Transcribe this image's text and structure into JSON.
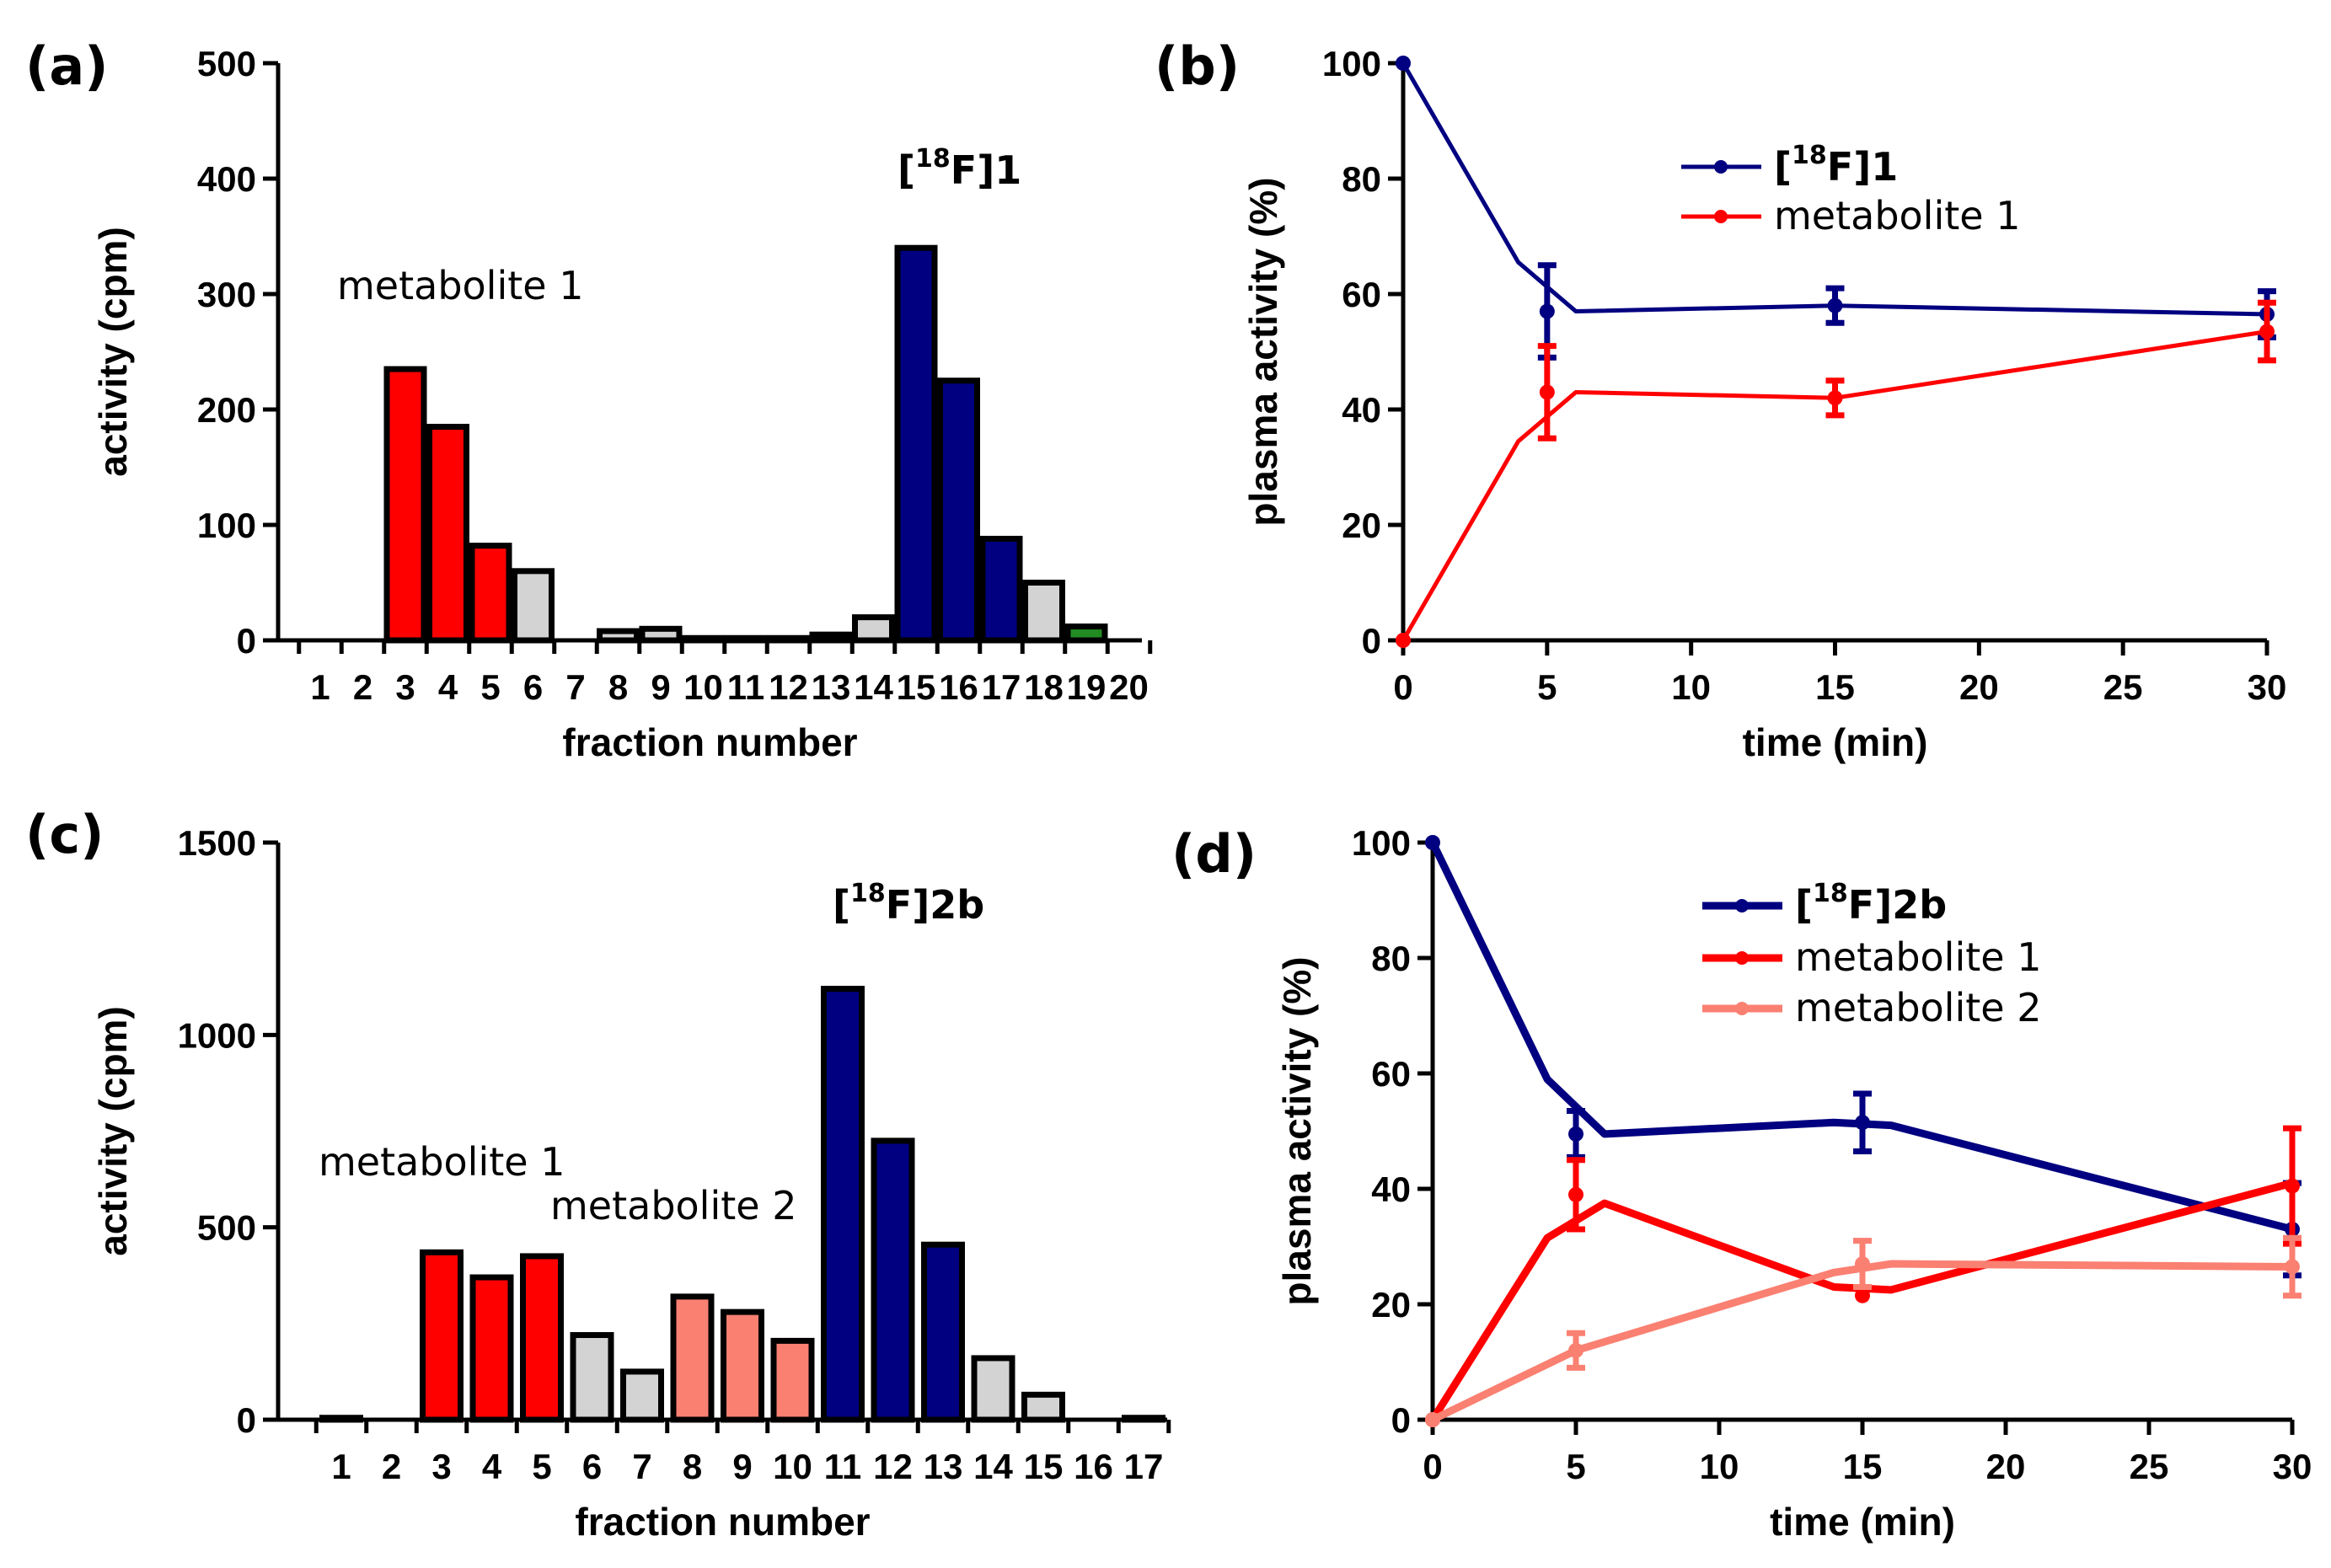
{
  "chart_data": [
    {
      "panel": "(a)",
      "type": "bar",
      "xlabel": "fraction number",
      "ylabel": "activity (cpm)",
      "ylim": [
        0,
        500
      ],
      "yticks": [
        0,
        100,
        200,
        300,
        400,
        500
      ],
      "categories": [
        "1",
        "2",
        "3",
        "4",
        "5",
        "6",
        "7",
        "8",
        "9",
        "10",
        "11",
        "12",
        "13",
        "14",
        "15",
        "16",
        "17",
        "18",
        "19",
        "20"
      ],
      "values": [
        0,
        0,
        235,
        185,
        82,
        60,
        0,
        8,
        10,
        2,
        2,
        2,
        5,
        20,
        340,
        225,
        88,
        50,
        12,
        0
      ],
      "colors": [
        "#d3d3d3",
        "#d3d3d3",
        "#ff0000",
        "#ff0000",
        "#ff0000",
        "#d3d3d3",
        "#d3d3d3",
        "#d3d3d3",
        "#d3d3d3",
        "#d3d3d3",
        "#d3d3d3",
        "#d3d3d3",
        "#d3d3d3",
        "#d3d3d3",
        "#000080",
        "#000080",
        "#000080",
        "#d3d3d3",
        "#228b22",
        "#d3d3d3"
      ],
      "annotations": [
        {
          "text": "metabolite 1"
        },
        {
          "text_prefix": "[",
          "sup": "18",
          "text_suffix": "F]1"
        }
      ]
    },
    {
      "panel": "(b)",
      "type": "line",
      "xlabel": "time (min)",
      "ylabel": "plasma activity (%)",
      "xlim": [
        0,
        30
      ],
      "ylim": [
        0,
        100
      ],
      "xticks": [
        0,
        5,
        10,
        15,
        20,
        25,
        30
      ],
      "yticks": [
        0,
        20,
        40,
        60,
        80,
        100
      ],
      "series": [
        {
          "name_prefix": "[",
          "name_sup": "18",
          "name_suffix": "F]1",
          "color": "#000080",
          "line_x": [
            0,
            4,
            6,
            15,
            30
          ],
          "line_y": [
            100,
            65.5,
            57,
            58,
            56.5
          ],
          "points_x": [
            0,
            5,
            15,
            30
          ],
          "points_y": [
            100,
            57,
            58,
            56.5
          ],
          "errors": [
            0,
            8,
            3,
            4
          ]
        },
        {
          "name": "metabolite 1",
          "color": "#ff0000",
          "line_x": [
            0,
            4,
            6,
            15,
            30
          ],
          "line_y": [
            0,
            34.5,
            43,
            42,
            53.5
          ],
          "points_x": [
            0,
            5,
            15,
            30
          ],
          "points_y": [
            0,
            43,
            42,
            53.5
          ],
          "errors": [
            0,
            8,
            3,
            5
          ]
        }
      ]
    },
    {
      "panel": "(c)",
      "type": "bar",
      "xlabel": "fraction number",
      "ylabel": "activity (cpm)",
      "ylim": [
        0,
        1500
      ],
      "yticks": [
        0,
        500,
        1000,
        1500
      ],
      "categories": [
        "1",
        "2",
        "3",
        "4",
        "5",
        "6",
        "7",
        "8",
        "9",
        "10",
        "11",
        "12",
        "13",
        "14",
        "15",
        "16",
        "17"
      ],
      "values": [
        5,
        0,
        435,
        370,
        425,
        220,
        125,
        320,
        280,
        205,
        1120,
        725,
        455,
        160,
        65,
        0,
        5
      ],
      "colors": [
        "#d3d3d3",
        "#d3d3d3",
        "#ff0000",
        "#ff0000",
        "#ff0000",
        "#d3d3d3",
        "#d3d3d3",
        "#fa8072",
        "#fa8072",
        "#fa8072",
        "#000080",
        "#000080",
        "#000080",
        "#d3d3d3",
        "#d3d3d3",
        "#d3d3d3",
        "#d3d3d3"
      ],
      "annotations": [
        {
          "text": "metabolite 1"
        },
        {
          "text": "metabolite 2"
        },
        {
          "text_prefix": "[",
          "sup": "18",
          "text_suffix": "F]2b"
        }
      ]
    },
    {
      "panel": "(d)",
      "type": "line",
      "xlabel": "time (min)",
      "ylabel": "plasma activity (%)",
      "xlim": [
        0,
        30
      ],
      "ylim": [
        0,
        100
      ],
      "xticks": [
        0,
        5,
        10,
        15,
        20,
        25,
        30
      ],
      "yticks": [
        0,
        20,
        40,
        60,
        80,
        100
      ],
      "series": [
        {
          "name_prefix": "[",
          "name_sup": "18",
          "name_suffix": "F]2b",
          "color": "#000080",
          "line_x": [
            0,
            4,
            6,
            14,
            16,
            30
          ],
          "line_y": [
            100,
            59,
            49.5,
            51.5,
            51,
            33
          ],
          "points_x": [
            0,
            5,
            15,
            30
          ],
          "points_y": [
            100,
            49.5,
            51.5,
            33
          ],
          "errors": [
            0,
            4,
            5,
            8
          ]
        },
        {
          "name": "metabolite 1",
          "color": "#ff0000",
          "line_x": [
            0,
            4,
            6,
            14,
            16,
            30
          ],
          "line_y": [
            0,
            31.5,
            37.5,
            23,
            22.5,
            41
          ],
          "points_x": [
            0,
            5,
            15,
            30
          ],
          "points_y": [
            0,
            39,
            21.5,
            40.5
          ],
          "errors": [
            0,
            6,
            0,
            10
          ]
        },
        {
          "name": "metabolite 2",
          "color": "#fa8072",
          "line_x": [
            0,
            5,
            14,
            16,
            30
          ],
          "line_y": [
            0,
            12,
            25.5,
            27,
            26.5
          ],
          "points_x": [
            0,
            5,
            15,
            30
          ],
          "points_y": [
            0,
            12,
            27,
            26.5
          ],
          "errors": [
            0,
            3,
            4,
            5
          ]
        }
      ]
    }
  ]
}
